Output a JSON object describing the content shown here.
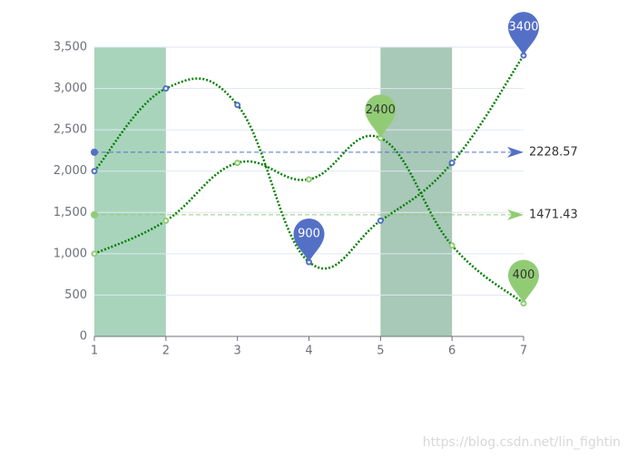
{
  "chart_data": {
    "type": "line",
    "x": [
      1,
      2,
      3,
      4,
      5,
      6,
      7
    ],
    "xlim": [
      1,
      7
    ],
    "xticks": [
      1,
      2,
      3,
      4,
      5,
      6,
      7
    ],
    "ylim": [
      0,
      3500
    ],
    "yticks": [
      0,
      500,
      {
        "value": 1000,
        "label": "1,000"
      },
      {
        "value": 1500,
        "label": "1,500"
      },
      {
        "value": 2000,
        "label": "2,000"
      },
      {
        "value": 2500,
        "label": "2,500"
      },
      {
        "value": 3000,
        "label": "3,000"
      },
      {
        "value": 3500,
        "label": "3,500"
      }
    ],
    "grid": true,
    "line_color": "#008000",
    "series": [
      {
        "color": "#5470c6",
        "values": [
          2000,
          3000,
          2800,
          900,
          1400,
          2100,
          3400
        ]
      },
      {
        "color": "#91cc75",
        "values": [
          1000,
          1400,
          2100,
          1900,
          2400,
          1100,
          400
        ]
      }
    ],
    "mark_areas": [
      {
        "from": 1,
        "to": 2,
        "color": "#a8d4bc"
      },
      {
        "from": 5,
        "to": 6,
        "color": "#a8c8b8"
      }
    ],
    "mark_points": [
      {
        "series": 0,
        "x": 7,
        "value": 3400
      },
      {
        "series": 0,
        "x": 4,
        "value": 900
      },
      {
        "series": 1,
        "x": 5,
        "value": 2400
      },
      {
        "series": 1,
        "x": 7,
        "value": 400
      }
    ],
    "mark_lines": [
      {
        "series": 0,
        "value": 2228.57
      },
      {
        "series": 1,
        "value": 1471.43
      }
    ],
    "watermark": "https://blog.csdn.net/lin_fightin"
  }
}
